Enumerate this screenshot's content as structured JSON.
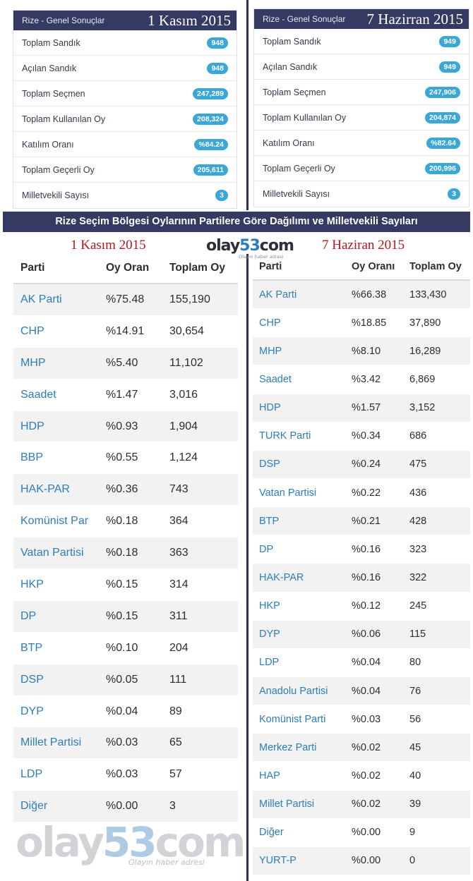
{
  "left_summary": {
    "label": "Rize - Genel Sonuçlar",
    "date": "1 Kasım 2015",
    "rows": [
      {
        "k": "Toplam Sandık",
        "v": "948"
      },
      {
        "k": "Açılan Sandık",
        "v": "948"
      },
      {
        "k": "Toplam Seçmen",
        "v": "247,289"
      },
      {
        "k": "Toplam Kullanılan Oy",
        "v": "208,324"
      },
      {
        "k": "Katılım Oranı",
        "v": "%84.24"
      },
      {
        "k": "Toplam Geçerli Oy",
        "v": "205,611"
      },
      {
        "k": "Milletvekili Sayısı",
        "v": "3"
      }
    ]
  },
  "right_summary": {
    "label": "Rize - Genel Sonuçlar",
    "date": "7 Hazirran 2015",
    "rows": [
      {
        "k": "Toplam Sandık",
        "v": "949"
      },
      {
        "k": "Açılan Sandık",
        "v": "949"
      },
      {
        "k": "Toplam Seçmen",
        "v": "247,906"
      },
      {
        "k": "Toplam Kullanılan Oy",
        "v": "204,874"
      },
      {
        "k": "Katılım Oranı",
        "v": "%82.64"
      },
      {
        "k": "Toplam Geçerli Oy",
        "v": "200,996"
      },
      {
        "k": "Milletvekili Sayısı",
        "v": "3"
      }
    ]
  },
  "banner": "Rize Seçim Bölgesi Oylarının Partilere Göre Dağılımı ve Milletvekili Sayıları",
  "left_title": "1 Kasım 2015",
  "right_title": "7 Haziran 2015",
  "logo": {
    "a": "olay",
    "n": "53",
    "b": "com",
    "tag": "Olayın haber adresi"
  },
  "watermark": {
    "a": "olay",
    "n": "53",
    "b": "com",
    "tag": "Olayın haber adresi"
  },
  "left_table": {
    "headers": [
      "Parti",
      "Oy Oran",
      "Toplam Oy"
    ],
    "rows": [
      [
        "AK Parti",
        "%75.48",
        "155,190"
      ],
      [
        "CHP",
        "%14.91",
        "30,654"
      ],
      [
        "MHP",
        "%5.40",
        "11,102"
      ],
      [
        "Saadet",
        "%1.47",
        "3,016"
      ],
      [
        "HDP",
        "%0.93",
        "1,904"
      ],
      [
        "BBP",
        "%0.55",
        "1,124"
      ],
      [
        "HAK-PAR",
        "%0.36",
        "743"
      ],
      [
        "Komünist Par",
        "%0.18",
        "364"
      ],
      [
        "Vatan Partisi",
        "%0.18",
        "363"
      ],
      [
        "HKP",
        "%0.15",
        "314"
      ],
      [
        "DP",
        "%0.15",
        "311"
      ],
      [
        "BTP",
        "%0.10",
        "204"
      ],
      [
        "DSP",
        "%0.05",
        "111"
      ],
      [
        "DYP",
        "%0.04",
        "89"
      ],
      [
        "Millet Partisi",
        "%0.03",
        "65"
      ],
      [
        "LDP",
        "%0.03",
        "57"
      ],
      [
        "Diğer",
        "%0.00",
        "3"
      ]
    ]
  },
  "right_table": {
    "headers": [
      "Parti",
      "Oy Oranı",
      "Toplam Oy"
    ],
    "rows": [
      [
        "AK Parti",
        "%66.38",
        "133,430"
      ],
      [
        "CHP",
        "%18.85",
        "37,890"
      ],
      [
        "MHP",
        "%8.10",
        "16,289"
      ],
      [
        "Saadet",
        "%3.42",
        "6,869"
      ],
      [
        "HDP",
        "%1.57",
        "3,152"
      ],
      [
        "TURK Parti",
        "%0.34",
        "686"
      ],
      [
        "DSP",
        "%0.24",
        "475"
      ],
      [
        "Vatan Partisi",
        "%0.22",
        "436"
      ],
      [
        "BTP",
        "%0.21",
        "428"
      ],
      [
        "DP",
        "%0.16",
        "323"
      ],
      [
        "HAK-PAR",
        "%0.16",
        "322"
      ],
      [
        "HKP",
        "%0.12",
        "245"
      ],
      [
        "DYP",
        "%0.06",
        "115"
      ],
      [
        "LDP",
        "%0.04",
        "80"
      ],
      [
        "Anadolu Partisi",
        "%0.04",
        "76"
      ],
      [
        "Komünist Parti",
        "%0.03",
        "56"
      ],
      [
        "Merkez Parti",
        "%0.02",
        "45"
      ],
      [
        "HAP",
        "%0.02",
        "40"
      ],
      [
        "Millet Partisi",
        "%0.02",
        "39"
      ],
      [
        "Diğer",
        "%0.00",
        "9"
      ],
      [
        "YURT-P",
        "%0.00",
        "0"
      ]
    ]
  }
}
